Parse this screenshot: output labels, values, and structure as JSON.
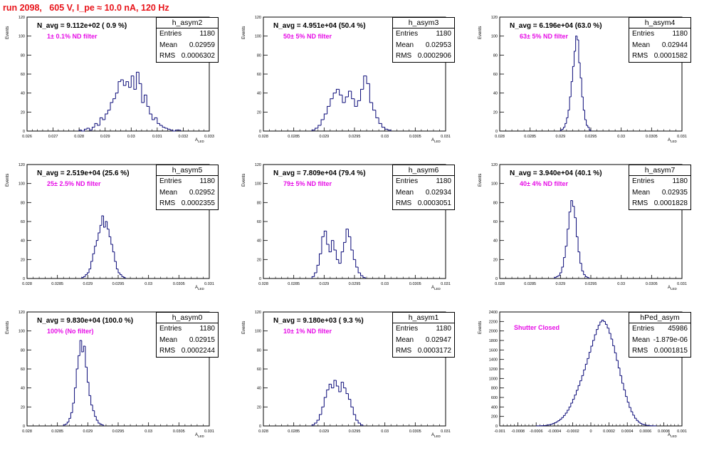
{
  "run_title": "run 2098,   605 V, I_pe ≈ 10.0 nA, 120 Hz",
  "axis_y_label": "Events",
  "axis_x_label": "A",
  "axis_x_sub": "LED",
  "colors": {
    "title": "#e8141a",
    "note": "#e60ce6",
    "hist": "#0a0a78"
  },
  "panels": [
    {
      "name": "h_asym2",
      "navg": "N_avg = 9.112e+02 ( 0.9 %)",
      "note": "1± 0.1% ND filter",
      "stats": [
        [
          "Entries",
          "1180"
        ],
        [
          "Mean",
          "0.02959"
        ],
        [
          "RMS",
          "0.0006302"
        ]
      ]
    },
    {
      "name": "h_asym3",
      "navg": "N_avg = 4.951e+04 (50.4 %)",
      "note": "50± 5% ND filter",
      "stats": [
        [
          "Entries",
          "1180"
        ],
        [
          "Mean",
          "0.02953"
        ],
        [
          "RMS",
          "0.0002906"
        ]
      ]
    },
    {
      "name": "h_asym4",
      "navg": "N_avg = 6.196e+04 (63.0 %)",
      "note": "63± 5% ND filter",
      "stats": [
        [
          "Entries",
          "1180"
        ],
        [
          "Mean",
          "0.02944"
        ],
        [
          "RMS",
          "0.0001582"
        ]
      ]
    },
    {
      "name": "h_asym5",
      "navg": "N_avg = 2.519e+04 (25.6 %)",
      "note": "25± 2.5% ND filter",
      "stats": [
        [
          "Entries",
          "1180"
        ],
        [
          "Mean",
          "0.02952"
        ],
        [
          "RMS",
          "0.0002355"
        ]
      ]
    },
    {
      "name": "h_asym6",
      "navg": "N_avg = 7.809e+04 (79.4 %)",
      "note": "79± 5% ND filter",
      "stats": [
        [
          "Entries",
          "1180"
        ],
        [
          "Mean",
          "0.02934"
        ],
        [
          "RMS",
          "0.0003051"
        ]
      ]
    },
    {
      "name": "h_asym7",
      "navg": "N_avg = 3.940e+04 (40.1 %)",
      "note": "40± 4% ND filter",
      "stats": [
        [
          "Entries",
          "1180"
        ],
        [
          "Mean",
          "0.02935"
        ],
        [
          "RMS",
          "0.0001828"
        ]
      ]
    },
    {
      "name": "h_asym0",
      "navg": "N_avg = 9.830e+04 (100.0 %)",
      "note": "100% (No filter)",
      "stats": [
        [
          "Entries",
          "1180"
        ],
        [
          "Mean",
          "0.02915"
        ],
        [
          "RMS",
          "0.0002244"
        ]
      ]
    },
    {
      "name": "h_asym1",
      "navg": "N_avg = 9.180e+03 ( 9.3 %)",
      "note": "10± 1% ND filter",
      "stats": [
        [
          "Entries",
          "1180"
        ],
        [
          "Mean",
          "0.02947"
        ],
        [
          "RMS",
          "0.0003172"
        ]
      ]
    },
    {
      "name": "hPed_asym",
      "navg": "",
      "note": "Shutter Closed",
      "stats": [
        [
          "Entries",
          "45986"
        ],
        [
          "Mean",
          "-1.879e-06"
        ],
        [
          "RMS",
          "0.0001815"
        ]
      ]
    }
  ],
  "chart_data": [
    {
      "type": "histogram",
      "title": "h_asym2",
      "xlim": [
        0.026,
        0.033
      ],
      "ylim": [
        0,
        120
      ],
      "xticks": [
        "0.026",
        "0.027",
        "0.028",
        "0.029",
        "0.03",
        "0.031",
        "0.032",
        "0.033"
      ],
      "yticks": [
        "0",
        "20",
        "40",
        "60",
        "80",
        "100",
        "120"
      ],
      "bin_start": 0.028,
      "bin_width": 0.0001,
      "counts": [
        1,
        0,
        2,
        3,
        1,
        4,
        8,
        6,
        14,
        12,
        18,
        22,
        30,
        34,
        40,
        52,
        54,
        48,
        52,
        46,
        58,
        44,
        62,
        50,
        30,
        38,
        26,
        18,
        12,
        14,
        8,
        6,
        4,
        3,
        2,
        1,
        0,
        1,
        1
      ]
    },
    {
      "type": "histogram",
      "title": "h_asym3",
      "xlim": [
        0.028,
        0.031
      ],
      "ylim": [
        0,
        120
      ],
      "xticks": [
        "0.028",
        "0.0285",
        "0.029",
        "0.0295",
        "0.03",
        "0.0305",
        "0.031"
      ],
      "yticks": [
        "0",
        "20",
        "40",
        "60",
        "80",
        "100",
        "120"
      ],
      "bin_start": 0.0288,
      "bin_width": 5e-05,
      "counts": [
        1,
        3,
        6,
        12,
        18,
        26,
        34,
        40,
        44,
        38,
        30,
        36,
        42,
        34,
        26,
        32,
        44,
        58,
        50,
        30,
        22,
        14,
        8,
        4,
        2,
        1
      ]
    },
    {
      "type": "histogram",
      "title": "h_asym4",
      "xlim": [
        0.028,
        0.031
      ],
      "ylim": [
        0,
        120
      ],
      "xticks": [
        "0.028",
        "0.0285",
        "0.029",
        "0.0295",
        "0.03",
        "0.0305",
        "0.031"
      ],
      "yticks": [
        "0",
        "20",
        "40",
        "60",
        "80",
        "100",
        "120"
      ],
      "bin_start": 0.029,
      "bin_width": 2.5e-05,
      "counts": [
        1,
        2,
        4,
        8,
        14,
        22,
        36,
        52,
        68,
        84,
        100,
        96,
        72,
        56,
        36,
        22,
        12,
        6,
        4,
        1
      ]
    },
    {
      "type": "histogram",
      "title": "h_asym5",
      "xlim": [
        0.028,
        0.031
      ],
      "ylim": [
        0,
        120
      ],
      "xticks": [
        "0.028",
        "0.0285",
        "0.029",
        "0.0295",
        "0.03",
        "0.0305",
        "0.031"
      ],
      "yticks": [
        "0",
        "20",
        "40",
        "60",
        "80",
        "100",
        "120"
      ],
      "bin_start": 0.0289,
      "bin_width": 3e-05,
      "counts": [
        1,
        2,
        4,
        6,
        10,
        18,
        26,
        34,
        40,
        48,
        56,
        66,
        54,
        60,
        52,
        44,
        36,
        28,
        18,
        10,
        6,
        4,
        2,
        1
      ]
    },
    {
      "type": "histogram",
      "title": "h_asym6",
      "xlim": [
        0.028,
        0.031
      ],
      "ylim": [
        0,
        120
      ],
      "xticks": [
        "0.028",
        "0.0285",
        "0.029",
        "0.0295",
        "0.03",
        "0.0305",
        "0.031"
      ],
      "yticks": [
        "0",
        "20",
        "40",
        "60",
        "80",
        "100",
        "120"
      ],
      "bin_start": 0.0288,
      "bin_width": 4e-05,
      "counts": [
        2,
        6,
        14,
        26,
        44,
        50,
        36,
        28,
        40,
        30,
        20,
        16,
        28,
        38,
        52,
        44,
        30,
        20,
        12,
        6,
        3,
        1
      ]
    },
    {
      "type": "histogram",
      "title": "h_asym7",
      "xlim": [
        0.028,
        0.031
      ],
      "ylim": [
        0,
        120
      ],
      "xticks": [
        "0.028",
        "0.0285",
        "0.029",
        "0.0295",
        "0.03",
        "0.0305",
        "0.031"
      ],
      "yticks": [
        "0",
        "20",
        "40",
        "60",
        "80",
        "100",
        "120"
      ],
      "bin_start": 0.0289,
      "bin_width": 3e-05,
      "counts": [
        1,
        2,
        3,
        6,
        12,
        22,
        34,
        52,
        70,
        82,
        76,
        64,
        44,
        28,
        16,
        8,
        4,
        2,
        1
      ]
    },
    {
      "type": "histogram",
      "title": "h_asym0",
      "xlim": [
        0.028,
        0.031
      ],
      "ylim": [
        0,
        120
      ],
      "xticks": [
        "0.028",
        "0.0285",
        "0.029",
        "0.0295",
        "0.03",
        "0.0305",
        "0.031"
      ],
      "yticks": [
        "0",
        "20",
        "40",
        "60",
        "80",
        "100",
        "120"
      ],
      "bin_start": 0.0286,
      "bin_width": 3e-05,
      "counts": [
        1,
        2,
        4,
        8,
        14,
        24,
        40,
        60,
        74,
        90,
        78,
        84,
        62,
        46,
        32,
        22,
        16,
        10,
        6,
        3,
        2,
        1
      ]
    },
    {
      "type": "histogram",
      "title": "h_asym1",
      "xlim": [
        0.028,
        0.031
      ],
      "ylim": [
        0,
        120
      ],
      "xticks": [
        "0.028",
        "0.0285",
        "0.029",
        "0.0295",
        "0.03",
        "0.0305",
        "0.031"
      ],
      "yticks": [
        "0",
        "20",
        "40",
        "60",
        "80",
        "100",
        "120"
      ],
      "bin_start": 0.0288,
      "bin_width": 4e-05,
      "counts": [
        1,
        3,
        6,
        12,
        20,
        30,
        38,
        44,
        40,
        48,
        42,
        36,
        46,
        40,
        34,
        28,
        20,
        12,
        6,
        3,
        1
      ]
    },
    {
      "type": "histogram",
      "title": "hPed_asym",
      "xlim": [
        -0.001,
        0.001
      ],
      "ylim": [
        0,
        2400
      ],
      "xticks": [
        "-0.001",
        "-0.0008",
        "-0.0006",
        "-0.0004",
        "-0.0002",
        "0",
        "0.0002",
        "0.0004",
        "0.0006",
        "0.0008",
        "0.001"
      ],
      "yticks": [
        "0",
        "200",
        "400",
        "600",
        "800",
        "1000",
        "1200",
        "1400",
        "1600",
        "1800",
        "2000",
        "2200",
        "2400"
      ],
      "bin_start": -0.0006,
      "bin_width": 2e-05,
      "counts": [
        1,
        2,
        3,
        5,
        8,
        12,
        18,
        26,
        36,
        50,
        66,
        86,
        110,
        140,
        176,
        220,
        270,
        330,
        400,
        480,
        560,
        650,
        750,
        850,
        950,
        1060,
        1180,
        1300,
        1420,
        1550,
        1680,
        1800,
        1920,
        2030,
        2120,
        2190,
        2230,
        2200,
        2140,
        2060,
        1950,
        1830,
        1690,
        1540,
        1380,
        1220,
        1060,
        900,
        760,
        620,
        500,
        390,
        300,
        226,
        164,
        116,
        80,
        54,
        36,
        24,
        16,
        10,
        6,
        4,
        2,
        1
      ]
    }
  ]
}
